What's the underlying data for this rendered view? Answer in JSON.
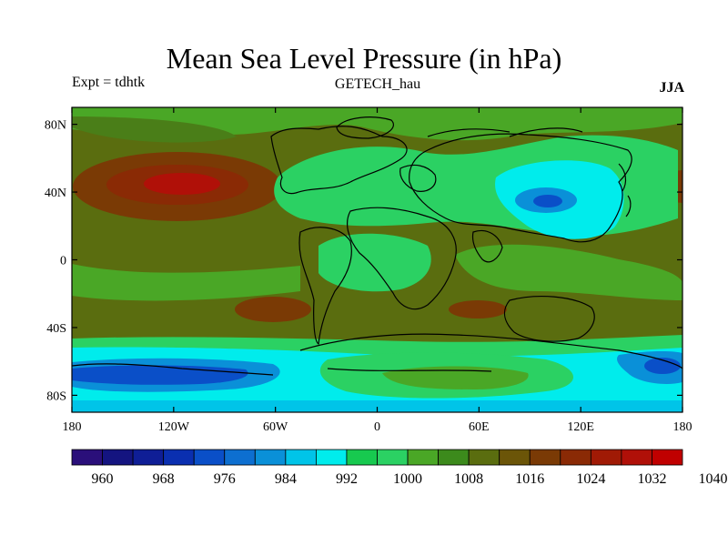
{
  "title": "Mean Sea Level Pressure (in hPa)",
  "experiment_label": "Expt = tdhtk",
  "dataset_label": "GETECH_hau",
  "season_label": "JJA",
  "map": {
    "projection": "cylindrical-equidistant",
    "lon_range": [
      -180,
      180
    ],
    "lat_range": [
      -90,
      90
    ],
    "lon_ticks": [
      {
        "value": -180,
        "label": "180"
      },
      {
        "value": -120,
        "label": "120W"
      },
      {
        "value": -60,
        "label": "60W"
      },
      {
        "value": 0,
        "label": "0"
      },
      {
        "value": 60,
        "label": "60E"
      },
      {
        "value": 120,
        "label": "120E"
      },
      {
        "value": 180,
        "label": "180"
      }
    ],
    "lat_ticks": [
      {
        "value": 80,
        "label": "80N"
      },
      {
        "value": 40,
        "label": "40N"
      },
      {
        "value": 0,
        "label": "0"
      },
      {
        "value": -40,
        "label": "40S"
      },
      {
        "value": -80,
        "label": "80S"
      }
    ]
  },
  "colorbar": {
    "colors": [
      "#2a0f7a",
      "#141480",
      "#0f1e96",
      "#0a2fb0",
      "#0a4fc8",
      "#0d6fd0",
      "#0a90d8",
      "#00c4e8",
      "#00ecec",
      "#17c94f",
      "#2bd163",
      "#4aa726",
      "#3c8a1c",
      "#5a6d0f",
      "#6b5508",
      "#7a3a05",
      "#8a2a05",
      "#a01a05",
      "#b01008",
      "#c00000"
    ],
    "labels": [
      "960",
      "968",
      "976",
      "984",
      "992",
      "1000",
      "1008",
      "1016",
      "1024",
      "1032",
      "1040"
    ]
  },
  "colors": {
    "background_field": "#5a6d0f",
    "coastline": "#000000"
  }
}
